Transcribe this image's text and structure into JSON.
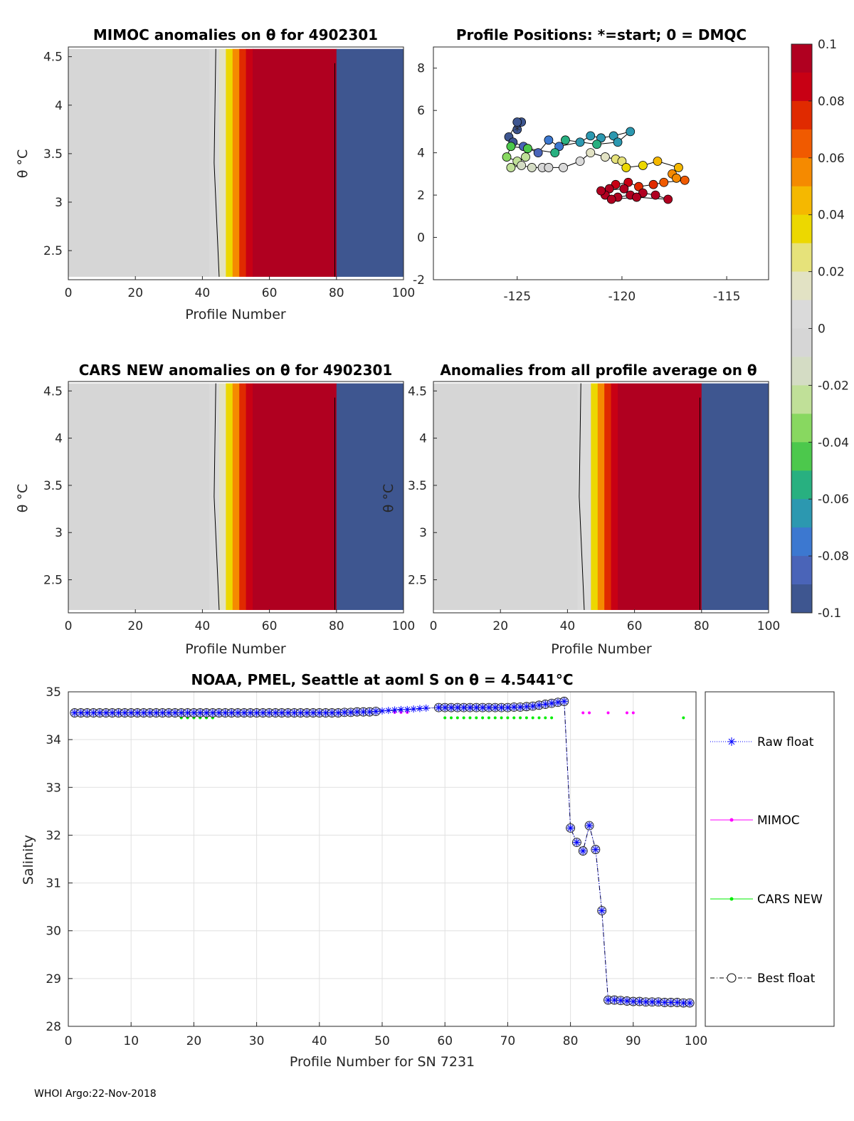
{
  "footer": "WHOI Argo:22-Nov-2018",
  "chart_data": [
    {
      "id": "mimoc",
      "type": "heatmap",
      "title": "MIMOC anomalies on θ  for 4902301",
      "xlabel": "Profile Number",
      "ylabel": "θ °C",
      "xlim": [
        0,
        100
      ],
      "ylim": [
        2.2,
        4.6
      ],
      "xticks": [
        "0",
        "20",
        "40",
        "60",
        "80",
        "100"
      ],
      "yticks": [
        "2.5",
        "3",
        "3.5",
        "4",
        "4.5"
      ],
      "bands": [
        {
          "x0": 0,
          "x1": 42,
          "value": 0
        },
        {
          "x0": 42,
          "x1": 45,
          "value": 0.005
        },
        {
          "x0": 45,
          "x1": 47,
          "value": 0.02
        },
        {
          "x0": 47,
          "x1": 49,
          "value": 0.035
        },
        {
          "x0": 49,
          "x1": 51,
          "value": 0.055
        },
        {
          "x0": 51,
          "x1": 53,
          "value": 0.075
        },
        {
          "x0": 53,
          "x1": 55,
          "value": 0.09
        },
        {
          "x0": 55,
          "x1": 80,
          "value": 0.1
        },
        {
          "x0": 80,
          "x1": 100,
          "value": -0.1
        }
      ]
    },
    {
      "id": "positions",
      "type": "scatter",
      "title": "Profile Positions: *=start; 0 = DMQC",
      "xlim": [
        -129,
        -113
      ],
      "ylim": [
        -2,
        9
      ],
      "xticks": [
        "-125",
        "-120",
        "-115"
      ],
      "yticks": [
        "-2",
        "0",
        "2",
        "4",
        "6",
        "8"
      ],
      "points": [
        {
          "lon": -125.0,
          "lat": 5.1,
          "value": -0.1
        },
        {
          "lon": -124.8,
          "lat": 5.45,
          "value": -0.1
        },
        {
          "lon": -125.0,
          "lat": 5.45,
          "value": -0.1
        },
        {
          "lon": -125.4,
          "lat": 4.75,
          "value": -0.1
        },
        {
          "lon": -125.2,
          "lat": 4.5,
          "value": -0.1
        },
        {
          "lon": -124.7,
          "lat": 4.3,
          "value": -0.09
        },
        {
          "lon": -124.0,
          "lat": 4.0,
          "value": -0.085
        },
        {
          "lon": -123.5,
          "lat": 4.6,
          "value": -0.08
        },
        {
          "lon": -123.0,
          "lat": 4.3,
          "value": -0.075
        },
        {
          "lon": -122.0,
          "lat": 4.5,
          "value": -0.07
        },
        {
          "lon": -121.5,
          "lat": 4.8,
          "value": -0.07
        },
        {
          "lon": -121.0,
          "lat": 4.7,
          "value": -0.07
        },
        {
          "lon": -120.4,
          "lat": 4.8,
          "value": -0.07
        },
        {
          "lon": -119.6,
          "lat": 5.0,
          "value": -0.065
        },
        {
          "lon": -120.2,
          "lat": 4.5,
          "value": -0.065
        },
        {
          "lon": -121.2,
          "lat": 4.4,
          "value": -0.06
        },
        {
          "lon": -122.7,
          "lat": 4.6,
          "value": -0.06
        },
        {
          "lon": -123.2,
          "lat": 4.0,
          "value": -0.055
        },
        {
          "lon": -124.5,
          "lat": 4.2,
          "value": -0.05
        },
        {
          "lon": -125.3,
          "lat": 4.3,
          "value": -0.045
        },
        {
          "lon": -125.5,
          "lat": 3.8,
          "value": -0.04
        },
        {
          "lon": -125.0,
          "lat": 3.6,
          "value": -0.03
        },
        {
          "lon": -124.6,
          "lat": 3.8,
          "value": -0.03
        },
        {
          "lon": -125.3,
          "lat": 3.3,
          "value": -0.025
        },
        {
          "lon": -124.8,
          "lat": 3.4,
          "value": -0.02
        },
        {
          "lon": -124.3,
          "lat": 3.3,
          "value": -0.015
        },
        {
          "lon": -123.8,
          "lat": 3.3,
          "value": -0.01
        },
        {
          "lon": -123.5,
          "lat": 3.3,
          "value": -0.005
        },
        {
          "lon": -122.8,
          "lat": 3.3,
          "value": 0.005
        },
        {
          "lon": -122.0,
          "lat": 3.6,
          "value": 0.01
        },
        {
          "lon": -121.5,
          "lat": 4.0,
          "value": 0.015
        },
        {
          "lon": -120.8,
          "lat": 3.8,
          "value": 0.02
        },
        {
          "lon": -120.3,
          "lat": 3.7,
          "value": 0.025
        },
        {
          "lon": -120.0,
          "lat": 3.6,
          "value": 0.03
        },
        {
          "lon": -119.8,
          "lat": 3.3,
          "value": 0.035
        },
        {
          "lon": -119.0,
          "lat": 3.4,
          "value": 0.04
        },
        {
          "lon": -118.3,
          "lat": 3.6,
          "value": 0.045
        },
        {
          "lon": -117.3,
          "lat": 3.3,
          "value": 0.05
        },
        {
          "lon": -117.6,
          "lat": 3.0,
          "value": 0.055
        },
        {
          "lon": -117.4,
          "lat": 2.8,
          "value": 0.06
        },
        {
          "lon": -117.0,
          "lat": 2.7,
          "value": 0.065
        },
        {
          "lon": -118.0,
          "lat": 2.6,
          "value": 0.07
        },
        {
          "lon": -118.5,
          "lat": 2.5,
          "value": 0.075
        },
        {
          "lon": -119.2,
          "lat": 2.4,
          "value": 0.08
        },
        {
          "lon": -119.7,
          "lat": 2.6,
          "value": 0.085
        },
        {
          "lon": -120.3,
          "lat": 2.5,
          "value": 0.09
        },
        {
          "lon": -120.6,
          "lat": 2.3,
          "value": 0.095
        },
        {
          "lon": -120.8,
          "lat": 2.0,
          "value": 0.1
        },
        {
          "lon": -120.2,
          "lat": 1.9,
          "value": 0.1
        },
        {
          "lon": -119.6,
          "lat": 2.0,
          "value": 0.1
        },
        {
          "lon": -119.0,
          "lat": 2.1,
          "value": 0.1
        },
        {
          "lon": -118.4,
          "lat": 2.0,
          "value": 0.1
        },
        {
          "lon": -117.8,
          "lat": 1.8,
          "value": 0.1
        },
        {
          "lon": -119.3,
          "lat": 1.9,
          "value": 0.1
        },
        {
          "lon": -120.5,
          "lat": 1.8,
          "value": 0.1
        },
        {
          "lon": -121.0,
          "lat": 2.2,
          "value": 0.1
        },
        {
          "lon": -119.9,
          "lat": 2.3,
          "value": 0.1
        }
      ]
    },
    {
      "id": "cars",
      "type": "heatmap",
      "title": "CARS NEW anomalies on θ for 4902301",
      "xlabel": "Profile Number",
      "ylabel": "θ °C",
      "xlim": [
        0,
        100
      ],
      "ylim": [
        2.15,
        4.6
      ],
      "xticks": [
        "0",
        "20",
        "40",
        "60",
        "80",
        "100"
      ],
      "yticks": [
        "2.5",
        "3",
        "3.5",
        "4",
        "4.5"
      ],
      "bands": [
        {
          "x0": 0,
          "x1": 42,
          "value": 0
        },
        {
          "x0": 42,
          "x1": 45,
          "value": 0.005
        },
        {
          "x0": 45,
          "x1": 47,
          "value": 0.02
        },
        {
          "x0": 47,
          "x1": 49,
          "value": 0.035
        },
        {
          "x0": 49,
          "x1": 51,
          "value": 0.055
        },
        {
          "x0": 51,
          "x1": 53,
          "value": 0.075
        },
        {
          "x0": 53,
          "x1": 55,
          "value": 0.09
        },
        {
          "x0": 55,
          "x1": 80,
          "value": 0.1
        },
        {
          "x0": 80,
          "x1": 100,
          "value": -0.1
        }
      ]
    },
    {
      "id": "avg",
      "type": "heatmap",
      "title": "Anomalies from all profile average on θ",
      "xlabel": "Profile Number",
      "ylabel": "θ °C",
      "xlim": [
        0,
        100
      ],
      "ylim": [
        2.15,
        4.6
      ],
      "xticks": [
        "0",
        "20",
        "40",
        "60",
        "80",
        "100"
      ],
      "yticks": [
        "2.5",
        "3",
        "3.5",
        "4",
        "4.5"
      ],
      "bands": [
        {
          "x0": 0,
          "x1": 43,
          "value": 0
        },
        {
          "x0": 43,
          "x1": 47,
          "value": 0.01
        },
        {
          "x0": 47,
          "x1": 49,
          "value": 0.035
        },
        {
          "x0": 49,
          "x1": 51,
          "value": 0.055
        },
        {
          "x0": 51,
          "x1": 53,
          "value": 0.075
        },
        {
          "x0": 53,
          "x1": 55,
          "value": 0.09
        },
        {
          "x0": 55,
          "x1": 80,
          "value": 0.1
        },
        {
          "x0": 80,
          "x1": 100,
          "value": -0.1
        }
      ]
    },
    {
      "id": "salinity",
      "type": "line",
      "title": "NOAA, PMEL, Seattle at aoml S on θ = 4.5441°C",
      "xlabel": "Profile Number for SN 7231",
      "ylabel": "Salinity",
      "xlim": [
        0,
        100
      ],
      "ylim": [
        28,
        35
      ],
      "xticks": [
        "0",
        "10",
        "20",
        "30",
        "40",
        "50",
        "60",
        "70",
        "80",
        "90",
        "100"
      ],
      "yticks": [
        "28",
        "29",
        "30",
        "31",
        "32",
        "33",
        "34",
        "35"
      ],
      "series": [
        {
          "name": "Raw float",
          "x": [
            1,
            2,
            3,
            4,
            5,
            6,
            7,
            8,
            9,
            10,
            11,
            12,
            13,
            14,
            15,
            16,
            17,
            18,
            19,
            20,
            21,
            22,
            23,
            24,
            25,
            26,
            27,
            28,
            29,
            30,
            31,
            32,
            33,
            34,
            35,
            36,
            37,
            38,
            39,
            40,
            41,
            42,
            43,
            44,
            45,
            46,
            47,
            48,
            49,
            50,
            51,
            52,
            53,
            54,
            55,
            56,
            57,
            59,
            60,
            61,
            62,
            63,
            64,
            65,
            66,
            67,
            68,
            69,
            70,
            71,
            72,
            73,
            74,
            75,
            76,
            77,
            78,
            79,
            80,
            81,
            82,
            83,
            84,
            85,
            86,
            87,
            88,
            89,
            90,
            91,
            92,
            93,
            94,
            95,
            96,
            97,
            98,
            99
          ],
          "values": [
            34.56,
            34.56,
            34.56,
            34.56,
            34.56,
            34.56,
            34.56,
            34.56,
            34.56,
            34.56,
            34.56,
            34.56,
            34.56,
            34.56,
            34.56,
            34.56,
            34.56,
            34.56,
            34.56,
            34.56,
            34.56,
            34.56,
            34.56,
            34.56,
            34.56,
            34.56,
            34.56,
            34.56,
            34.56,
            34.56,
            34.56,
            34.56,
            34.56,
            34.56,
            34.56,
            34.56,
            34.56,
            34.56,
            34.56,
            34.56,
            34.56,
            34.56,
            34.56,
            34.57,
            34.57,
            34.58,
            34.58,
            34.58,
            34.59,
            34.6,
            34.61,
            34.62,
            34.63,
            34.63,
            34.64,
            34.65,
            34.66,
            34.67,
            34.67,
            34.67,
            34.67,
            34.67,
            34.67,
            34.67,
            34.67,
            34.67,
            34.67,
            34.67,
            34.67,
            34.68,
            34.68,
            34.69,
            34.7,
            34.72,
            34.74,
            34.76,
            34.78,
            34.8,
            32.15,
            31.85,
            31.67,
            32.2,
            31.7,
            30.42,
            28.55,
            28.55,
            28.54,
            28.53,
            28.52,
            28.52,
            28.51,
            28.51,
            28.51,
            28.5,
            28.5,
            28.5,
            28.49,
            28.49
          ]
        },
        {
          "name": "MIMOC",
          "x": [
            20,
            21,
            42,
            43,
            52,
            53,
            54,
            82,
            83,
            86,
            89,
            90
          ],
          "values": [
            34.56,
            34.56,
            34.56,
            34.56,
            34.57,
            34.57,
            34.57,
            34.56,
            34.56,
            34.56,
            34.56,
            34.56
          ]
        },
        {
          "name": "CARS NEW",
          "x": [
            18,
            19,
            20,
            21,
            22,
            23,
            60,
            61,
            62,
            63,
            64,
            65,
            66,
            67,
            68,
            69,
            70,
            71,
            72,
            73,
            74,
            75,
            76,
            77,
            98
          ],
          "values": [
            34.56,
            34.56,
            34.56,
            34.56,
            34.56,
            34.56,
            34.56,
            34.56,
            34.56,
            34.56,
            34.56,
            34.56,
            34.56,
            34.56,
            34.56,
            34.56,
            34.56,
            34.56,
            34.56,
            34.56,
            34.56,
            34.56,
            34.56,
            34.56,
            34.56
          ]
        },
        {
          "name": "Best float",
          "x": [
            1,
            2,
            3,
            4,
            5,
            6,
            7,
            8,
            9,
            10,
            11,
            12,
            13,
            14,
            15,
            16,
            17,
            18,
            19,
            20,
            21,
            22,
            23,
            24,
            25,
            26,
            27,
            28,
            29,
            30,
            31,
            32,
            33,
            34,
            35,
            36,
            37,
            38,
            39,
            40,
            41,
            42,
            43,
            44,
            45,
            46,
            47,
            48,
            49,
            59,
            60,
            61,
            62,
            63,
            64,
            65,
            66,
            67,
            68,
            69,
            70,
            71,
            72,
            73,
            74,
            75,
            76,
            77,
            78,
            79,
            80,
            81,
            82,
            83,
            84,
            85,
            86,
            87,
            88,
            89,
            90,
            91,
            92,
            93,
            94,
            95,
            96,
            97,
            98,
            99
          ],
          "values": [
            34.56,
            34.56,
            34.56,
            34.56,
            34.56,
            34.56,
            34.56,
            34.56,
            34.56,
            34.56,
            34.56,
            34.56,
            34.56,
            34.56,
            34.56,
            34.56,
            34.56,
            34.56,
            34.56,
            34.56,
            34.56,
            34.56,
            34.56,
            34.56,
            34.56,
            34.56,
            34.56,
            34.56,
            34.56,
            34.56,
            34.56,
            34.56,
            34.56,
            34.56,
            34.56,
            34.56,
            34.56,
            34.56,
            34.56,
            34.56,
            34.56,
            34.56,
            34.56,
            34.57,
            34.57,
            34.58,
            34.58,
            34.58,
            34.59,
            34.67,
            34.67,
            34.67,
            34.67,
            34.67,
            34.67,
            34.67,
            34.67,
            34.67,
            34.67,
            34.67,
            34.67,
            34.68,
            34.68,
            34.69,
            34.7,
            34.72,
            34.74,
            34.76,
            34.78,
            34.8,
            32.15,
            31.85,
            31.67,
            32.2,
            31.7,
            30.42,
            28.55,
            28.55,
            28.54,
            28.53,
            28.52,
            28.52,
            28.51,
            28.51,
            28.51,
            28.5,
            28.5,
            28.5,
            28.49,
            28.49
          ]
        }
      ],
      "legend": [
        "Raw float",
        "MIMOC",
        "CARS NEW",
        "Best float"
      ]
    },
    {
      "id": "colorbar",
      "type": "heatmap",
      "range": [
        -0.1,
        0.1
      ],
      "ticks": [
        "0.1",
        "0.08",
        "0.06",
        "0.04",
        "0.02",
        "0",
        "-0.02",
        "-0.04",
        "-0.06",
        "-0.08",
        "-0.1"
      ],
      "colors": [
        "#b00020",
        "#c80014",
        "#e02a00",
        "#f05a00",
        "#f58a00",
        "#f5b800",
        "#ecd800",
        "#e6e27a",
        "#e2e2c4",
        "#dadada",
        "#d6d6d6",
        "#d4dcc4",
        "#c0e098",
        "#88d860",
        "#4cc84c",
        "#28b080",
        "#2c98b0",
        "#3c78d0",
        "#4a64b8",
        "#3e5690"
      ]
    }
  ],
  "colors": {
    "raw": "#0000ff",
    "mimoc": "#ff00ff",
    "cars": "#00ee00",
    "best": "#000000",
    "grid": "#e0e0e0",
    "axis": "#262626"
  }
}
